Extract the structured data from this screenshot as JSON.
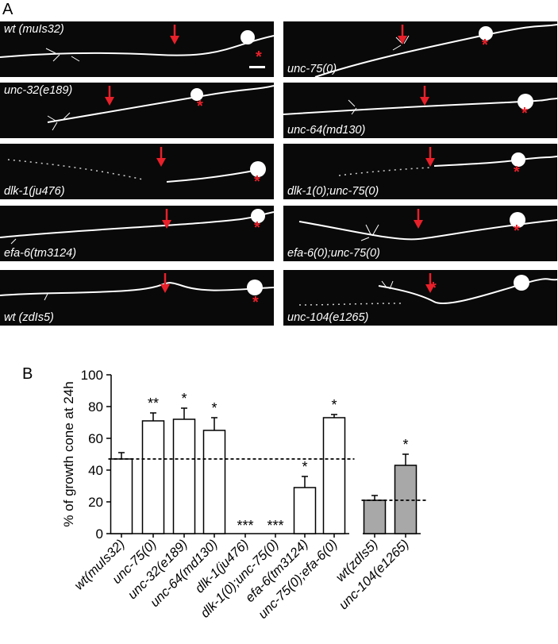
{
  "panel_a": {
    "letter": "A",
    "images": [
      {
        "label": "wt (muIs32)"
      },
      {
        "label": "unc-75(0)"
      },
      {
        "label": "unc-32(e189)"
      },
      {
        "label": "unc-64(md130)"
      },
      {
        "label": "dlk-1(ju476)"
      },
      {
        "label": "dlk-1(0);unc-75(0)"
      },
      {
        "label": "efa-6(tm3124)"
      },
      {
        "label": "efa-6(0);unc-75(0)"
      },
      {
        "label": "wt (zdIs5)"
      },
      {
        "label": "unc-104(e1265)"
      }
    ],
    "marker_symbol": "*",
    "colors": {
      "marker": "#e8202a",
      "background": "#090909",
      "neuron": "#ffffff"
    }
  },
  "panel_b": {
    "letter": "B"
  },
  "chart_data": {
    "type": "bar",
    "ylabel": "% of growth cone at 24h",
    "ylim": [
      0,
      100
    ],
    "yticks": [
      0,
      20,
      40,
      60,
      80,
      100
    ],
    "categories": [
      "wt(muIs32)",
      "unc-75(0)",
      "unc-32(e189)",
      "unc-64(md130)",
      "dlk-1(ju476)",
      "dlk-1(0);unc-75(0)",
      "efa-6(tm3124)",
      "unc-75(0);efa-6(0)",
      "wt(zdIs5)",
      "unc-104(e1265)"
    ],
    "values": [
      47,
      71,
      72,
      65,
      0,
      0,
      29,
      73,
      21,
      43
    ],
    "errors": [
      4,
      5,
      7,
      8,
      0,
      0,
      7,
      2,
      3,
      7
    ],
    "significance": [
      "",
      "**",
      "*",
      "*",
      "***",
      "***",
      "*",
      "*",
      "",
      "*"
    ],
    "bar_colors": [
      "#ffffff",
      "#ffffff",
      "#ffffff",
      "#ffffff",
      "#ffffff",
      "#ffffff",
      "#ffffff",
      "#ffffff",
      "#a8a8a8",
      "#a8a8a8"
    ],
    "reference_lines": [
      {
        "value": 47,
        "from_category": 0,
        "to_category": 7
      },
      {
        "value": 21,
        "from_category": 8,
        "to_category": 9
      }
    ]
  }
}
